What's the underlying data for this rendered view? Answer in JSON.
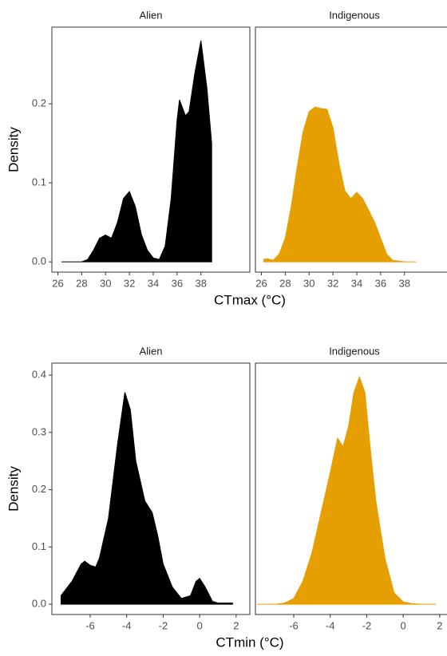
{
  "chart_data": [
    {
      "type": "area",
      "facet": true,
      "xlabel": "CTmax (°C)",
      "ylabel": "Density",
      "xlim": [
        25.5,
        42.1
      ],
      "ylim": [
        -0.013,
        0.297
      ],
      "xticks": [
        26,
        28,
        30,
        32,
        34,
        36,
        38
      ],
      "yticks": [
        {
          "value": 0,
          "label": "0.0"
        },
        0.1,
        0.2
      ],
      "series": [
        {
          "name": "Alien",
          "color": "#000000",
          "x": [
            26.3,
            28,
            28.5,
            29,
            29.5,
            30,
            30.5,
            31,
            31.5,
            32,
            32.5,
            33,
            33.5,
            34,
            34.5,
            35,
            35.5,
            36,
            36.2,
            36.7,
            37,
            37.5,
            38,
            38.5,
            38.9
          ],
          "values": [
            0,
            0,
            0.003,
            0.015,
            0.03,
            0.034,
            0.03,
            0.05,
            0.08,
            0.089,
            0.07,
            0.035,
            0.015,
            0.005,
            0.003,
            0.02,
            0.08,
            0.18,
            0.205,
            0.185,
            0.19,
            0.24,
            0.28,
            0.22,
            0.15
          ]
        },
        {
          "name": "Indigenous",
          "color": "#e69f00",
          "x": [
            26.2,
            26.5,
            27,
            27.5,
            28,
            28.5,
            29,
            29.5,
            30,
            30.5,
            31,
            31.5,
            32,
            32.5,
            33,
            33.5,
            34,
            34.5,
            35,
            35.5,
            36,
            36.5,
            37,
            38,
            39
          ],
          "values": [
            0.003,
            0.004,
            0.002,
            0.01,
            0.03,
            0.07,
            0.12,
            0.165,
            0.19,
            0.196,
            0.194,
            0.193,
            0.17,
            0.125,
            0.09,
            0.08,
            0.088,
            0.08,
            0.065,
            0.05,
            0.03,
            0.01,
            0.002,
            0,
            0
          ]
        }
      ]
    },
    {
      "type": "area",
      "facet": true,
      "xlabel": "CTmin (°C)",
      "ylabel": "Density",
      "xlim": [
        -8.1,
        2.75
      ],
      "ylim": [
        -0.018,
        0.421
      ],
      "xticks": [
        -6,
        -4,
        -2,
        0,
        2
      ],
      "yticks": [
        {
          "value": 0,
          "label": "0.0"
        },
        0.1,
        0.2,
        0.3,
        0.4
      ],
      "series": [
        {
          "name": "Alien",
          "color": "#000000",
          "x": [
            -7.6,
            -7,
            -6.5,
            -6.3,
            -6,
            -5.7,
            -5.5,
            -5,
            -4.5,
            -4.1,
            -3.8,
            -3.5,
            -3,
            -2.6,
            -2.3,
            -2,
            -1.5,
            -1,
            -0.5,
            -0.2,
            0,
            0.3,
            0.7,
            1,
            1.8
          ],
          "values": [
            0.015,
            0.04,
            0.07,
            0.075,
            0.068,
            0.065,
            0.08,
            0.15,
            0.28,
            0.37,
            0.34,
            0.25,
            0.18,
            0.16,
            0.12,
            0.07,
            0.03,
            0.01,
            0.015,
            0.04,
            0.045,
            0.03,
            0.005,
            0.002,
            0.002
          ]
        },
        {
          "name": "Indigenous",
          "color": "#e69f00",
          "x": [
            -8,
            -7,
            -6.5,
            -6,
            -5.5,
            -5,
            -4.5,
            -4,
            -3.6,
            -3.3,
            -3,
            -2.7,
            -2.4,
            -2.1,
            -1.8,
            -1.5,
            -1,
            -0.5,
            0,
            0.5,
            1,
            1.8
          ],
          "values": [
            0,
            0,
            0.002,
            0.01,
            0.04,
            0.09,
            0.16,
            0.23,
            0.29,
            0.275,
            0.31,
            0.37,
            0.397,
            0.37,
            0.27,
            0.18,
            0.08,
            0.02,
            0.004,
            0.001,
            0,
            0
          ]
        }
      ]
    }
  ]
}
